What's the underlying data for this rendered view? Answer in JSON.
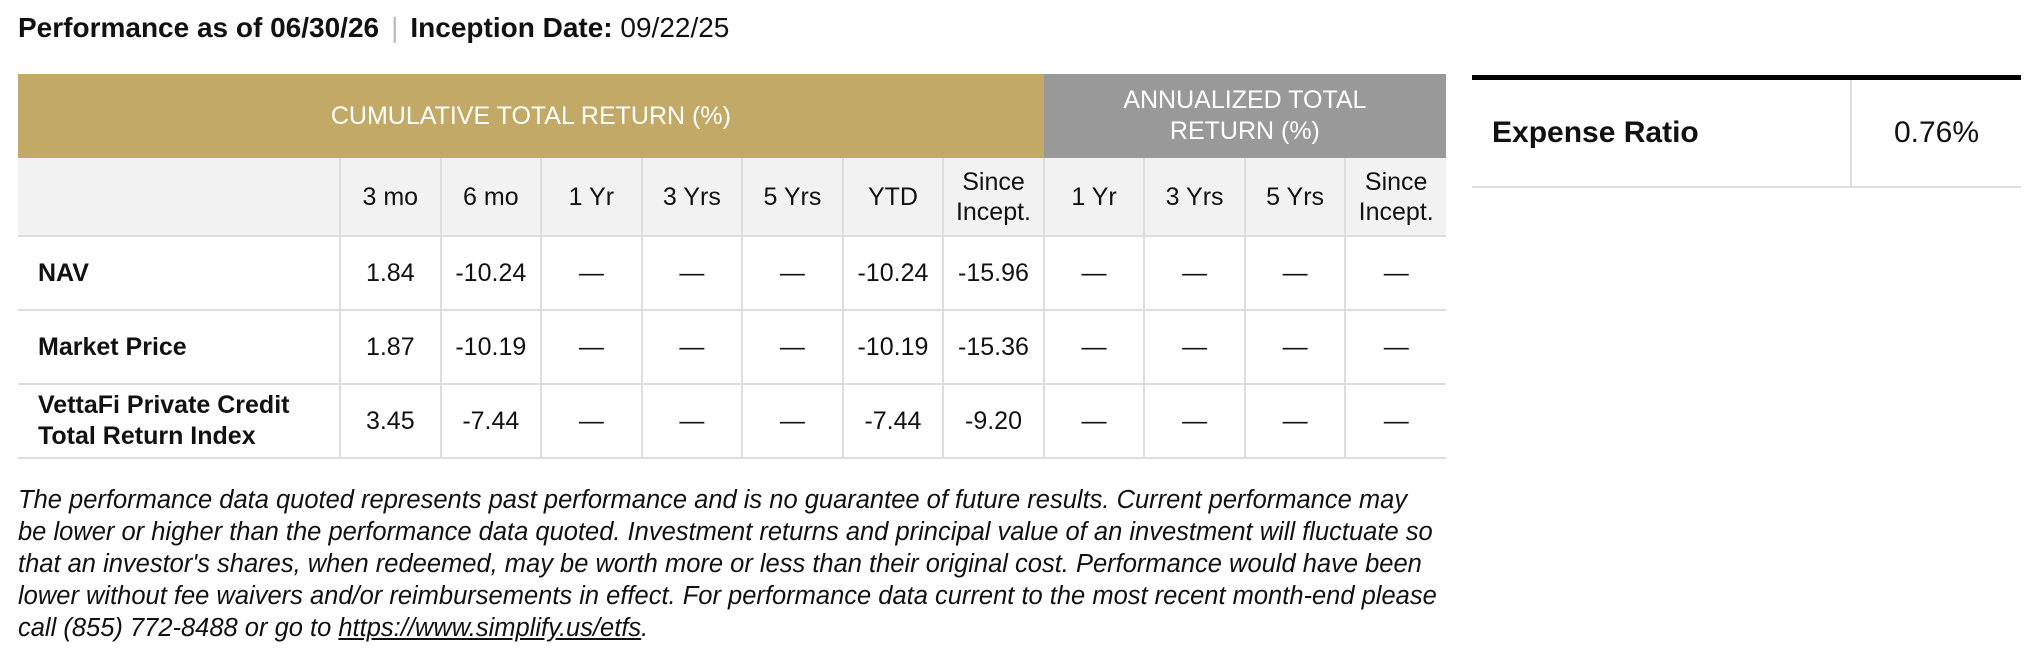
{
  "header": {
    "performance_label": "Performance as of 06/30/26",
    "separator": "|",
    "inception_label": "Inception Date:",
    "inception_date": "09/22/25"
  },
  "table": {
    "group_headers": [
      "CUMULATIVE TOTAL RETURN (%)",
      "ANNUALIZED TOTAL RETURN (%)"
    ],
    "columns": [
      "3 mo",
      "6 mo",
      "1 Yr",
      "3 Yrs",
      "5 Yrs",
      "YTD",
      "Since Incept.",
      "1 Yr",
      "3 Yrs",
      "5 Yrs",
      "Since Incept."
    ],
    "rows": [
      [
        "NAV",
        "1.84",
        "-10.24",
        "—",
        "—",
        "—",
        "-10.24",
        "-15.96",
        "—",
        "—",
        "—",
        "—"
      ],
      [
        "Market Price",
        "1.87",
        "-10.19",
        "—",
        "—",
        "—",
        "-10.19",
        "-15.36",
        "—",
        "—",
        "—",
        "—"
      ],
      [
        "VettaFi Private Credit Total Return Index",
        "3.45",
        "-7.44",
        "—",
        "—",
        "—",
        "-7.44",
        "-9.20",
        "—",
        "—",
        "—",
        "—"
      ]
    ]
  },
  "expense": {
    "label": "Expense Ratio",
    "value": "0.76%"
  },
  "footnote": {
    "text": "The performance data quoted represents past performance and is no guarantee of future results. Current performance may be lower or higher than the performance data quoted. Investment returns and principal value of an investment will fluctuate so that an investor's shares, when redeemed, may be worth more or less than their original cost. Performance would have been lower without fee waivers and/or reimbursements in effect. For performance data current to the most recent month-end please call (855) 772-8488 or go to ",
    "link": "https://www.simplify.us/etfs",
    "end": "."
  }
}
